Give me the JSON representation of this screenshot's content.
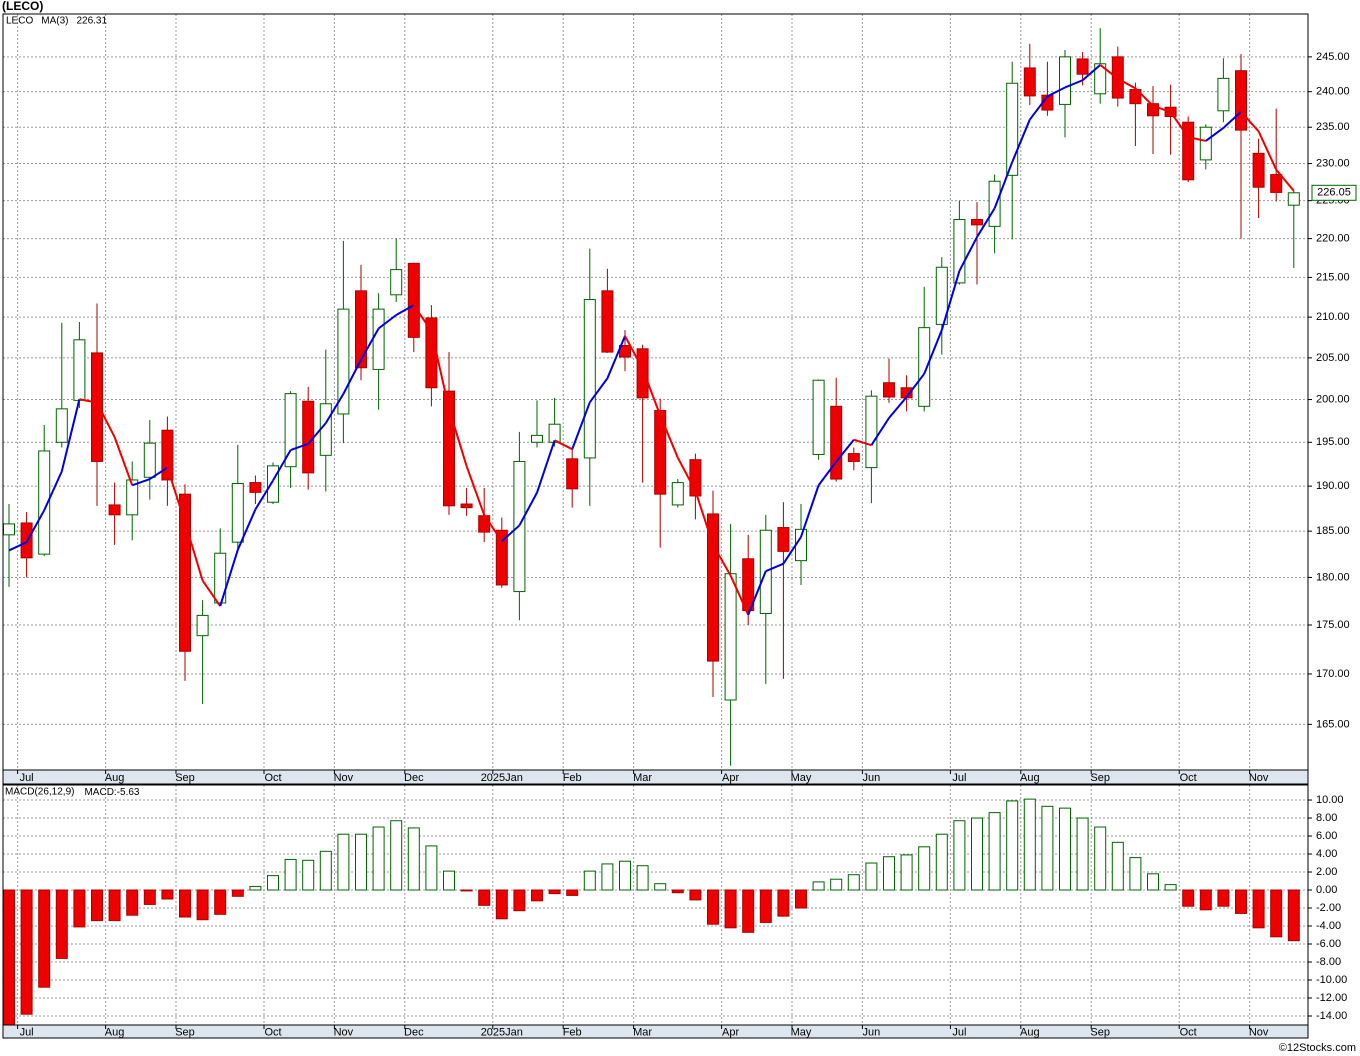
{
  "chart_data": [
    {
      "type": "candlestick",
      "title": "(LECO)",
      "log_scale": true,
      "grid": true,
      "ylim": [
        160.6,
        251.3
      ],
      "yticks": [
        {
          "value": 245,
          "label": "245.00"
        },
        {
          "value": 240,
          "label": "240.00"
        },
        {
          "value": 235,
          "label": "235.00"
        },
        {
          "value": 230,
          "label": "230.00"
        },
        {
          "value": 225,
          "label": "225.00"
        },
        {
          "value": 220,
          "label": "220.00"
        },
        {
          "value": 215,
          "label": "215.00"
        },
        {
          "value": 210,
          "label": "210.00"
        },
        {
          "value": 205,
          "label": "205.00"
        },
        {
          "value": 200,
          "label": "200.00"
        },
        {
          "value": 195,
          "label": "195.00"
        },
        {
          "value": 190,
          "label": "190.00"
        },
        {
          "value": 185,
          "label": "185.00"
        },
        {
          "value": 180,
          "label": "180.00"
        },
        {
          "value": 175,
          "label": "175.00"
        },
        {
          "value": 170,
          "label": "170.00"
        },
        {
          "value": 165,
          "label": "165.00"
        }
      ],
      "categories": [
        null,
        "Jul",
        null,
        null,
        null,
        null,
        "Aug",
        null,
        null,
        null,
        "Sep",
        null,
        null,
        null,
        null,
        "Oct",
        null,
        null,
        null,
        "Nov",
        null,
        null,
        null,
        "Dec",
        null,
        null,
        null,
        null,
        "2025Jan",
        null,
        null,
        null,
        "Feb",
        null,
        null,
        null,
        "Mar",
        null,
        null,
        null,
        null,
        "Apr",
        null,
        null,
        null,
        "May",
        null,
        null,
        null,
        "Jun",
        null,
        null,
        null,
        null,
        "Jul",
        null,
        null,
        null,
        "Aug",
        null,
        null,
        null,
        "Sep",
        null,
        null,
        null,
        null,
        "Oct",
        null,
        null,
        null,
        "Nov",
        null,
        null
      ],
      "series": [
        {
          "name": "LECO",
          "up_color": "#006400",
          "down_color": "#ee0000",
          "open": [
            184.6,
            185.9,
            182.5,
            195,
            199.9,
            205.6,
            187.9,
            186.8,
            191,
            196.4,
            189.1,
            173.9,
            177.3,
            183.8,
            190.4,
            188.2,
            192.2,
            199.8,
            193.5,
            198.3,
            213.3,
            203.6,
            212.8,
            216.8,
            209.9,
            201,
            188,
            186.7,
            185.1,
            178.5,
            195,
            195,
            193.1,
            193.2,
            213.3,
            206.5,
            206.1,
            198.7,
            187.9,
            193,
            186.9,
            167.4,
            182,
            176.2,
            185.4,
            181.8,
            193.6,
            199.2,
            193.7,
            192.1,
            202,
            201.4,
            199.2,
            209.1,
            214.3,
            222.5,
            221.6,
            228.4,
            243.4,
            239.5,
            238.2,
            244.7,
            239.7,
            245,
            240.3,
            238.3,
            237.8,
            235.7,
            230.5,
            237.3,
            243,
            231.4,
            228.5,
            224.4
          ],
          "high": [
            188,
            187.1,
            197,
            209.3,
            209.4,
            211.7,
            190.4,
            192.8,
            197.6,
            198,
            190.2,
            177.6,
            185.3,
            194.7,
            191.2,
            192.7,
            201,
            201.5,
            206,
            219.7,
            216.6,
            213,
            220,
            216.9,
            211.5,
            205.7,
            189.8,
            189.8,
            186.5,
            196.2,
            199.9,
            200.2,
            194.3,
            218.7,
            216.1,
            208.4,
            206.6,
            200.1,
            190.8,
            193.7,
            189.5,
            185.8,
            184.6,
            186.8,
            188.2,
            188,
            202.4,
            202.6,
            194.4,
            201.1,
            204.9,
            202.9,
            213.8,
            217.6,
            225,
            224.8,
            228.5,
            244.3,
            246.9,
            244.3,
            246,
            245.7,
            249.2,
            246.5,
            241.3,
            240.8,
            241,
            236.5,
            235.4,
            244.8,
            245.4,
            233.4,
            237.6,
            226.3
          ],
          "low": [
            179,
            180,
            182.3,
            194.4,
            199,
            187.8,
            183.5,
            184,
            188.5,
            187.8,
            169.3,
            167,
            177.2,
            182.7,
            188,
            188,
            189.8,
            189.6,
            189.4,
            194.9,
            202.3,
            198.8,
            211.9,
            205.7,
            199.2,
            186.8,
            186.7,
            183.8,
            178.9,
            175.5,
            194.4,
            194.5,
            187.6,
            187.8,
            205.6,
            203.4,
            190.4,
            183.2,
            187.6,
            186.3,
            167.7,
            161,
            175,
            169,
            169.5,
            179.2,
            193,
            190.5,
            191.8,
            188.1,
            199.6,
            198.6,
            198.6,
            205.4,
            214.1,
            214.1,
            218.1,
            219.9,
            238.1,
            236.6,
            233.6,
            240.9,
            238.3,
            237.9,
            232.4,
            231.3,
            231.2,
            227.5,
            229.2,
            235.7,
            220,
            222.7,
            224.9,
            216.2
          ],
          "close": [
            185.8,
            182.1,
            194,
            198.9,
            207.2,
            192.8,
            186.8,
            190.7,
            194.9,
            190.7,
            172.3,
            176,
            182.6,
            190.3,
            189.3,
            192.3,
            200.7,
            191.5,
            199.5,
            211,
            203.8,
            211,
            216,
            207.5,
            201.4,
            187.8,
            187.6,
            184.9,
            179.2,
            192.8,
            195.8,
            197.1,
            189.7,
            212.2,
            205.7,
            205.1,
            200.2,
            189.1,
            190.4,
            188.9,
            171.3,
            180.4,
            176.5,
            185.1,
            182.8,
            185.2,
            202.3,
            190.8,
            192.8,
            200.4,
            200.3,
            200.2,
            208.7,
            216.3,
            222.5,
            221.8,
            227.6,
            241.2,
            239.4,
            237.4,
            245,
            242.5,
            244,
            239.1,
            238.3,
            236.6,
            236.5,
            227.8,
            235,
            241.9,
            234.6,
            226.8,
            226.1,
            226.05
          ]
        },
        {
          "name": "MA(3)",
          "type": "line",
          "up_color": "#0000dd",
          "down_color": "#ee0000",
          "values": [
            182.9,
            183.8,
            187.3,
            191.67,
            200.03,
            199.63,
            195.6,
            190.1,
            190.8,
            192.1,
            185.97,
            179.67,
            176.97,
            182.97,
            187.4,
            190.63,
            194.1,
            194.83,
            197.23,
            200.67,
            204.77,
            208.6,
            210.27,
            211.5,
            208.3,
            198.9,
            192.27,
            186.77,
            183.9,
            185.63,
            189.27,
            195.23,
            194.2,
            199.67,
            202.53,
            207.67,
            203.67,
            198.13,
            193.23,
            189.47,
            183.53,
            180.2,
            176.07,
            180.67,
            181.47,
            184.37,
            190.1,
            192.77,
            195.3,
            194.67,
            197.83,
            200.3,
            203.07,
            208.4,
            215.83,
            220.2,
            223.97,
            230.2,
            236.07,
            239.33,
            240.6,
            241.63,
            243.83,
            241.87,
            240.47,
            238,
            237.13,
            233.63,
            233.1,
            234.9,
            237.17,
            234.43,
            229.17,
            226.31
          ]
        }
      ]
    },
    {
      "type": "bar",
      "grid": true,
      "ylim": [
        -15,
        11.67
      ],
      "yticks": [
        {
          "value": 10,
          "label": "10.00"
        },
        {
          "value": 8,
          "label": "8.00"
        },
        {
          "value": 6,
          "label": "6.00"
        },
        {
          "value": 4,
          "label": "4.00"
        },
        {
          "value": 2,
          "label": "2.00"
        },
        {
          "value": 0,
          "label": "0.00"
        },
        {
          "value": -2,
          "label": "-2.00"
        },
        {
          "value": -4,
          "label": "-4.00"
        },
        {
          "value": -6,
          "label": "-6.00"
        },
        {
          "value": -8,
          "label": "-8.00"
        },
        {
          "value": -10,
          "label": "-10.00"
        },
        {
          "value": -12,
          "label": "-12.00"
        },
        {
          "value": -14,
          "label": "-14.00"
        }
      ],
      "categories": [
        null,
        "Jul",
        null,
        null,
        null,
        null,
        "Aug",
        null,
        null,
        null,
        "Sep",
        null,
        null,
        null,
        null,
        "Oct",
        null,
        null,
        null,
        "Nov",
        null,
        null,
        null,
        "Dec",
        null,
        null,
        null,
        null,
        "2025Jan",
        null,
        null,
        null,
        "Feb",
        null,
        null,
        null,
        "Mar",
        null,
        null,
        null,
        null,
        "Apr",
        null,
        null,
        null,
        "May",
        null,
        null,
        null,
        "Jun",
        null,
        null,
        null,
        null,
        "Jul",
        null,
        null,
        null,
        "Aug",
        null,
        null,
        null,
        "Sep",
        null,
        null,
        null,
        null,
        "Oct",
        null,
        null,
        null,
        "Nov",
        null,
        null
      ],
      "series": [
        {
          "name": "MACD(26,12,9)",
          "value_prefix": "MACD:",
          "up_color": "#006400",
          "down_color": "#ee0000",
          "values": [
            -15,
            -13.8,
            -10.8,
            -7.6,
            -4.1,
            -3.4,
            -3.4,
            -2.8,
            -1.6,
            -1,
            -3,
            -3.3,
            -2.7,
            -0.7,
            0.4,
            1.6,
            3.4,
            3.3,
            4.3,
            6.2,
            6.2,
            7,
            7.7,
            6.9,
            4.9,
            2.1,
            -0.1,
            -1.7,
            -3.2,
            -2.3,
            -1.2,
            -0.4,
            -0.6,
            2.1,
            2.9,
            3.2,
            2.7,
            0.7,
            -0.3,
            -1.1,
            -3.8,
            -4.2,
            -4.7,
            -3.6,
            -2.9,
            -2,
            0.9,
            1.2,
            1.7,
            3,
            3.7,
            3.9,
            4.8,
            6.2,
            7.7,
            8,
            8.6,
            9.9,
            10.1,
            9.3,
            9.1,
            8,
            7,
            5.3,
            3.6,
            1.8,
            0.6,
            -1.8,
            -2.2,
            -1.8,
            -2.6,
            -4.2,
            -5.2,
            -5.63
          ]
        }
      ]
    }
  ],
  "footer": "©12Stocks.com"
}
